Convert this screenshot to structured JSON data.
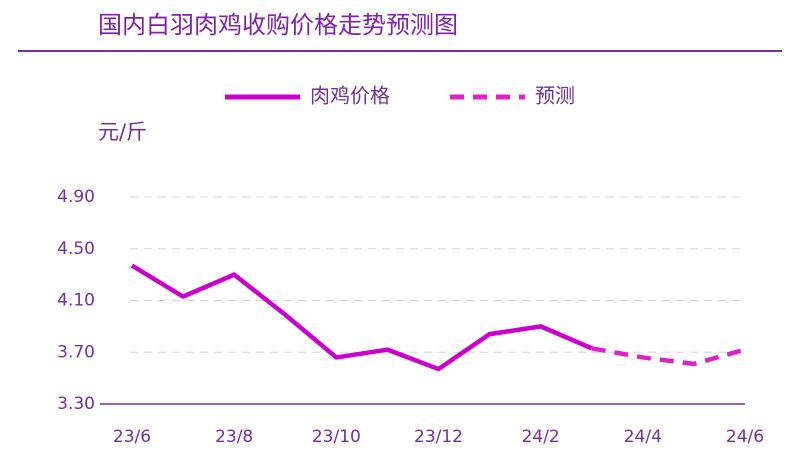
{
  "chart_data": {
    "type": "line",
    "title": "国内白羽肉鸡收购价格走势预测图",
    "y_label": "元/斤",
    "categories": [
      "23/6",
      null,
      "23/8",
      null,
      "23/10",
      null,
      "23/12",
      null,
      "24/2",
      null,
      "24/4",
      null,
      "24/6"
    ],
    "series": [
      {
        "name": "肉鸡价格",
        "color": "#cc00cc",
        "style": "solid",
        "values": [
          4.37,
          4.13,
          4.3,
          3.99,
          3.66,
          3.72,
          3.57,
          3.84,
          3.9,
          3.73,
          null,
          null,
          null
        ]
      },
      {
        "name": "预测",
        "color": "#e020c8",
        "style": "dashed",
        "values": [
          null,
          null,
          null,
          null,
          null,
          null,
          null,
          null,
          null,
          3.73,
          3.66,
          3.61,
          3.72
        ]
      }
    ],
    "ylim": [
      3.3,
      4.9
    ],
    "yticks": [
      {
        "value": 3.3,
        "label": "3.30"
      },
      {
        "value": 3.7,
        "label": "3.70"
      },
      {
        "value": 4.1,
        "label": "4.10"
      },
      {
        "value": 4.5,
        "label": "4.50"
      },
      {
        "value": 4.9,
        "label": "4.90"
      }
    ],
    "grid": true
  }
}
